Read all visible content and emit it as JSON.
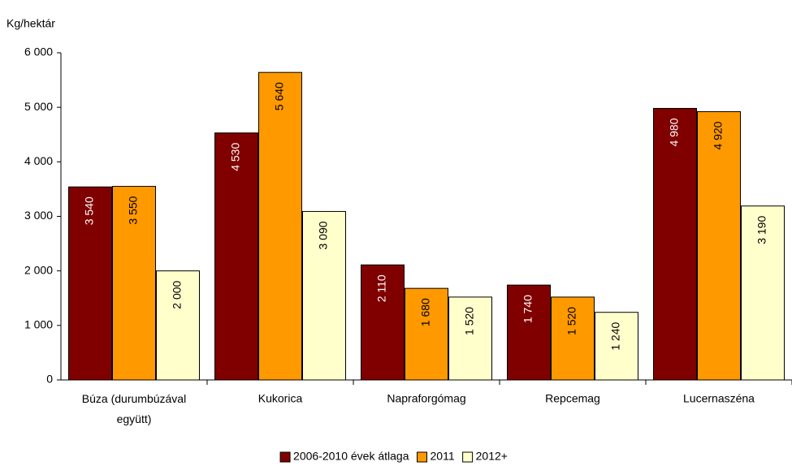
{
  "chart_data": {
    "type": "bar",
    "y_label": "Kg/hektár",
    "categories": [
      "Búza (durumbúzával együtt)",
      "Kukorica",
      "Napraforgómag",
      "Repcemag",
      "Lucernaszéna"
    ],
    "series": [
      {
        "name": "2006-2010 évek átlaga",
        "color": "#800000",
        "values": [
          3540,
          4530,
          2110,
          1740,
          4980
        ],
        "value_labels": [
          "3 540",
          "4 530",
          "2 110",
          "1 740",
          "4 980"
        ]
      },
      {
        "name": "2011",
        "color": "#ff9900",
        "values": [
          3550,
          5640,
          1680,
          1520,
          4920
        ],
        "value_labels": [
          "3 550",
          "5 640",
          "1 680",
          "1 520",
          "4 920"
        ]
      },
      {
        "name": "2012+",
        "color": "#ffffcc",
        "values": [
          2000,
          3090,
          1520,
          1240,
          3190
        ],
        "value_labels": [
          "2 000",
          "3 090",
          "1 520",
          "1 240",
          "3 190"
        ]
      }
    ],
    "ylim": [
      0,
      6000
    ],
    "yticks": [
      0,
      {
        "value": 1000,
        "label": "1 000"
      },
      {
        "value": 2000,
        "label": "2 000"
      },
      {
        "value": 3000,
        "label": "3 000"
      },
      {
        "value": 4000,
        "label": "4 000"
      },
      {
        "value": 5000,
        "label": "5 000"
      },
      {
        "value": 6000,
        "label": "6 000"
      }
    ],
    "legend": "bottom"
  }
}
